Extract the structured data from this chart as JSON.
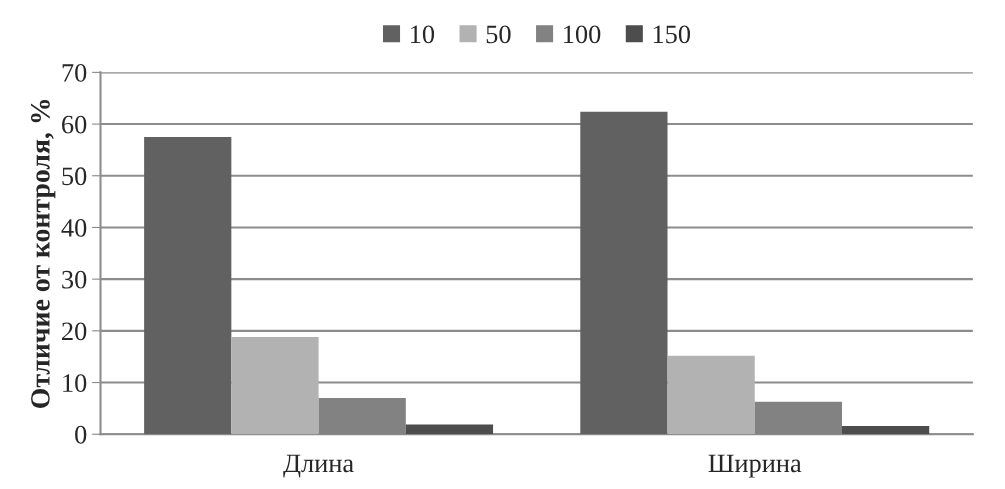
{
  "chart_data": {
    "type": "bar",
    "ylabel": "Отличие от контроля, %",
    "categories": [
      "Длина",
      "Ширина"
    ],
    "series": [
      {
        "name": "10",
        "color": "#616161",
        "values": [
          57.5,
          62.4
        ]
      },
      {
        "name": "50",
        "color": "#b2b2b2",
        "values": [
          18.8,
          15.2
        ]
      },
      {
        "name": "100",
        "color": "#828282",
        "values": [
          7.0,
          6.3
        ]
      },
      {
        "name": "150",
        "color": "#4d4d4d",
        "values": [
          1.9,
          1.6
        ]
      }
    ],
    "ylim": [
      0,
      70
    ],
    "yticks": [
      0,
      10,
      20,
      30,
      40,
      50,
      60,
      70
    ],
    "grid": "y",
    "legend": "top"
  }
}
